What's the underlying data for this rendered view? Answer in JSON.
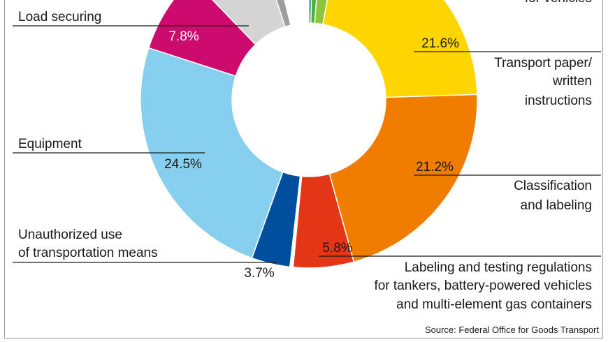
{
  "chart_data": {
    "type": "pie",
    "style": "donut",
    "title": "",
    "categories": [
      "Vehicles",
      "Transport paper/ written instructions",
      "Classification and labeling",
      "Labeling and testing regulations for tankers, battery-powered vehicles and multi-element gas containers",
      "",
      "Unauthorized use of transportation means",
      "Equipment",
      "Load securing",
      "",
      ""
    ],
    "values": [
      1.7,
      21.6,
      21.2,
      5.8,
      0.3,
      3.7,
      24.5,
      7.8,
      7.2,
      1.2
    ],
    "colors": [
      "#8cc63f",
      "#ffd500",
      "#f07d00",
      "#e53517",
      "#ffffff",
      "#004f9f",
      "#87cfee",
      "#cd0b6f",
      "#d4d4d4",
      "#9e9e9e"
    ],
    "extra_wedges": [
      {
        "value": 0.4,
        "color": "#00875a"
      },
      {
        "value": 0.8,
        "color": "#4cae3b"
      }
    ],
    "labels": [
      {
        "category": "Load securing",
        "lines": [
          "Load securing"
        ],
        "value_text": "7.8%"
      },
      {
        "category": "Equipment",
        "lines": [
          "Equipment"
        ],
        "value_text": "24.5%"
      },
      {
        "category": "Unauthorized use of transportation means",
        "lines": [
          "Unauthorized use",
          "of transportation means"
        ],
        "value_text": "3.7%"
      },
      {
        "category": "Vehicles",
        "lines": [
          "for vehicles"
        ],
        "value_text": ""
      },
      {
        "category": "Transport paper/ written instructions",
        "lines": [
          "Transport paper/",
          "written",
          "instructions"
        ],
        "value_text": "21.6%"
      },
      {
        "category": "Classification and labeling",
        "lines": [
          "Classification",
          "and labeling"
        ],
        "value_text": "21.2%"
      },
      {
        "category": "Labeling and testing regulations for tankers, battery-powered vehicles and multi-element gas containers",
        "lines": [
          "Labeling and testing regulations",
          "for tankers, battery-powered vehicles",
          "and multi-element gas containers"
        ],
        "value_text": "5.8%"
      }
    ],
    "source": "Source: Federal Office for Goods Transport"
  }
}
